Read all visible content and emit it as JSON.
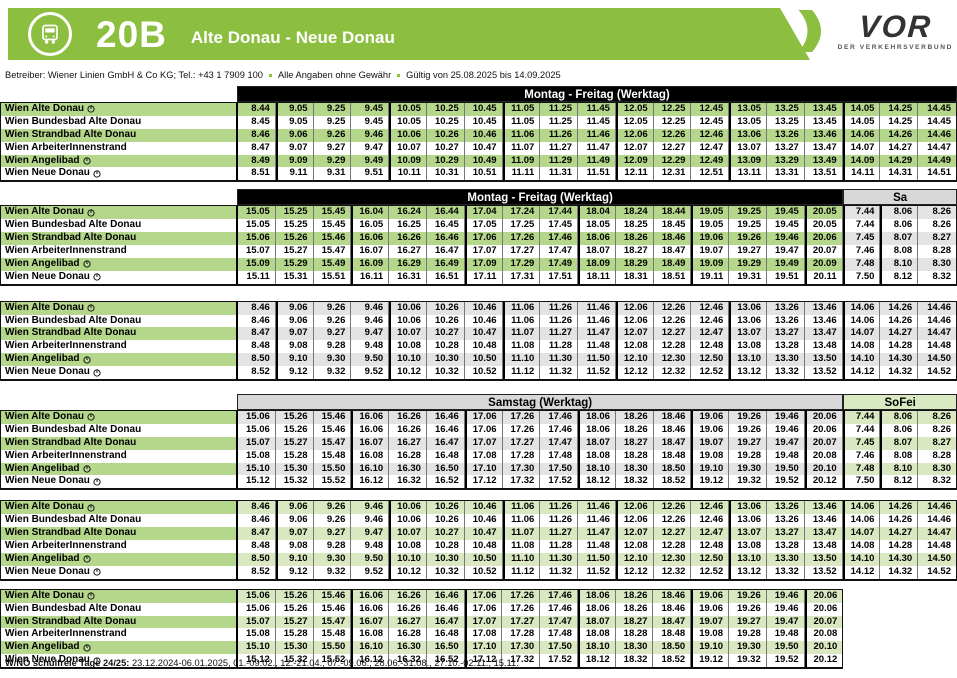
{
  "header": {
    "line_number": "20B",
    "route": "Alte Donau - Neue Donau",
    "brand": {
      "name": "VOR",
      "tagline": "DER VERKEHRSVERBUND"
    }
  },
  "info_line": {
    "operator": "Betreiber: Wiener Linien GmbH & Co KG; Tel.: +43 1 7909 100",
    "disclaimer": "Alle Angaben ohne Gewähr",
    "validity": "Gültig von 25.08.2025 bis 14.09.2025"
  },
  "icons": {
    "bus": "bus-icon",
    "brand_chevron": "vor-chevron-icon",
    "stop_symbol": "circled-clock"
  },
  "colors": {
    "brand_green": "#8cbe3f",
    "header_black": "#000000",
    "header_gray": "#d8d8d8",
    "header_green_light": "#d9e9c2",
    "stripe_green": "#b5d78b",
    "stripe_gray": "#e3e3e3",
    "stripe_green_light": "#d9e8c0",
    "border_dark": "#111111"
  },
  "stops": [
    {
      "name": "Wien Alte Donau",
      "symbol": true
    },
    {
      "name": "Wien Bundesbad Alte Donau",
      "symbol": false
    },
    {
      "name": "Wien Strandbad Alte Donau",
      "symbol": false
    },
    {
      "name": "Wien ArbeiterInnenstrand",
      "symbol": false
    },
    {
      "name": "Wien Angelibad",
      "symbol": true
    },
    {
      "name": "Wien Neue Donau",
      "symbol": true
    }
  ],
  "sections": [
    {
      "id": "A",
      "cols": 19,
      "stripe": "green",
      "header": {
        "main": "Montag - Freitag (Werktag)",
        "main_span": 19,
        "main_style": "black"
      },
      "rows": [
        [
          "8.44",
          "9.05",
          "9.25",
          "9.45",
          "10.05",
          "10.25",
          "10.45",
          "11.05",
          "11.25",
          "11.45",
          "12.05",
          "12.25",
          "12.45",
          "13.05",
          "13.25",
          "13.45",
          "14.05",
          "14.25",
          "14.45"
        ],
        [
          "8.45",
          "9.05",
          "9.25",
          "9.45",
          "10.05",
          "10.25",
          "10.45",
          "11.05",
          "11.25",
          "11.45",
          "12.05",
          "12.25",
          "12.45",
          "13.05",
          "13.25",
          "13.45",
          "14.05",
          "14.25",
          "14.45"
        ],
        [
          "8.46",
          "9.06",
          "9.26",
          "9.46",
          "10.06",
          "10.26",
          "10.46",
          "11.06",
          "11.26",
          "11.46",
          "12.06",
          "12.26",
          "12.46",
          "13.06",
          "13.26",
          "13.46",
          "14.06",
          "14.26",
          "14.46"
        ],
        [
          "8.47",
          "9.07",
          "9.27",
          "9.47",
          "10.07",
          "10.27",
          "10.47",
          "11.07",
          "11.27",
          "11.47",
          "12.07",
          "12.27",
          "12.47",
          "13.07",
          "13.27",
          "13.47",
          "14.07",
          "14.27",
          "14.47"
        ],
        [
          "8.49",
          "9.09",
          "9.29",
          "9.49",
          "10.09",
          "10.29",
          "10.49",
          "11.09",
          "11.29",
          "11.49",
          "12.09",
          "12.29",
          "12.49",
          "13.09",
          "13.29",
          "13.49",
          "14.09",
          "14.29",
          "14.49"
        ],
        [
          "8.51",
          "9.11",
          "9.31",
          "9.51",
          "10.11",
          "10.31",
          "10.51",
          "11.11",
          "11.31",
          "11.51",
          "12.11",
          "12.31",
          "12.51",
          "13.11",
          "13.31",
          "13.51",
          "14.11",
          "14.31",
          "14.51"
        ]
      ]
    },
    {
      "id": "B",
      "cols": 19,
      "stripe": "green",
      "extra_start": 16,
      "extra_stripe": "gray",
      "header": {
        "main": "Montag - Freitag (Werktag)",
        "main_span": 16,
        "main_style": "black",
        "sub": "Sa",
        "sub_span": 3,
        "sub_style": "gray"
      },
      "rows": [
        [
          "15.05",
          "15.25",
          "15.45",
          "16.04",
          "16.24",
          "16.44",
          "17.04",
          "17.24",
          "17.44",
          "18.04",
          "18.24",
          "18.44",
          "19.05",
          "19.25",
          "19.45",
          "20.05",
          "7.44",
          "8.06",
          "8.26"
        ],
        [
          "15.05",
          "15.25",
          "15.45",
          "16.05",
          "16.25",
          "16.45",
          "17.05",
          "17.25",
          "17.45",
          "18.05",
          "18.25",
          "18.45",
          "19.05",
          "19.25",
          "19.45",
          "20.05",
          "7.44",
          "8.06",
          "8.26"
        ],
        [
          "15.06",
          "15.26",
          "15.46",
          "16.06",
          "16.26",
          "16.46",
          "17.06",
          "17.26",
          "17.46",
          "18.06",
          "18.26",
          "18.46",
          "19.06",
          "19.26",
          "19.46",
          "20.06",
          "7.45",
          "8.07",
          "8.27"
        ],
        [
          "15.07",
          "15.27",
          "15.47",
          "16.07",
          "16.27",
          "16.47",
          "17.07",
          "17.27",
          "17.47",
          "18.07",
          "18.27",
          "18.47",
          "19.07",
          "19.27",
          "19.47",
          "20.07",
          "7.46",
          "8.08",
          "8.28"
        ],
        [
          "15.09",
          "15.29",
          "15.49",
          "16.09",
          "16.29",
          "16.49",
          "17.09",
          "17.29",
          "17.49",
          "18.09",
          "18.29",
          "18.49",
          "19.09",
          "19.29",
          "19.49",
          "20.09",
          "7.48",
          "8.10",
          "8.30"
        ],
        [
          "15.11",
          "15.31",
          "15.51",
          "16.11",
          "16.31",
          "16.51",
          "17.11",
          "17.31",
          "17.51",
          "18.11",
          "18.31",
          "18.51",
          "19.11",
          "19.31",
          "19.51",
          "20.11",
          "7.50",
          "8.12",
          "8.32"
        ]
      ]
    },
    {
      "id": "C",
      "cols": 19,
      "stripe": "gray",
      "rows": [
        [
          "8.46",
          "9.06",
          "9.26",
          "9.46",
          "10.06",
          "10.26",
          "10.46",
          "11.06",
          "11.26",
          "11.46",
          "12.06",
          "12.26",
          "12.46",
          "13.06",
          "13.26",
          "13.46",
          "14.06",
          "14.26",
          "14.46"
        ],
        [
          "8.46",
          "9.06",
          "9.26",
          "9.46",
          "10.06",
          "10.26",
          "10.46",
          "11.06",
          "11.26",
          "11.46",
          "12.06",
          "12.26",
          "12.46",
          "13.06",
          "13.26",
          "13.46",
          "14.06",
          "14.26",
          "14.46"
        ],
        [
          "8.47",
          "9.07",
          "9.27",
          "9.47",
          "10.07",
          "10.27",
          "10.47",
          "11.07",
          "11.27",
          "11.47",
          "12.07",
          "12.27",
          "12.47",
          "13.07",
          "13.27",
          "13.47",
          "14.07",
          "14.27",
          "14.47"
        ],
        [
          "8.48",
          "9.08",
          "9.28",
          "9.48",
          "10.08",
          "10.28",
          "10.48",
          "11.08",
          "11.28",
          "11.48",
          "12.08",
          "12.28",
          "12.48",
          "13.08",
          "13.28",
          "13.48",
          "14.08",
          "14.28",
          "14.48"
        ],
        [
          "8.50",
          "9.10",
          "9.30",
          "9.50",
          "10.10",
          "10.30",
          "10.50",
          "11.10",
          "11.30",
          "11.50",
          "12.10",
          "12.30",
          "12.50",
          "13.10",
          "13.30",
          "13.50",
          "14.10",
          "14.30",
          "14.50"
        ],
        [
          "8.52",
          "9.12",
          "9.32",
          "9.52",
          "10.12",
          "10.32",
          "10.52",
          "11.12",
          "11.32",
          "11.52",
          "12.12",
          "12.32",
          "12.52",
          "13.12",
          "13.32",
          "13.52",
          "14.12",
          "14.32",
          "14.52"
        ]
      ]
    },
    {
      "id": "D",
      "cols": 19,
      "stripe": "gray",
      "extra_start": 16,
      "extra_stripe": "green_light",
      "header": {
        "main": "Samstag (Werktag)",
        "main_span": 16,
        "main_style": "gray",
        "sub": "SoFei",
        "sub_span": 3,
        "sub_style": "green_light"
      },
      "rows": [
        [
          "15.06",
          "15.26",
          "15.46",
          "16.06",
          "16.26",
          "16.46",
          "17.06",
          "17.26",
          "17.46",
          "18.06",
          "18.26",
          "18.46",
          "19.06",
          "19.26",
          "19.46",
          "20.06",
          "7.44",
          "8.06",
          "8.26"
        ],
        [
          "15.06",
          "15.26",
          "15.46",
          "16.06",
          "16.26",
          "16.46",
          "17.06",
          "17.26",
          "17.46",
          "18.06",
          "18.26",
          "18.46",
          "19.06",
          "19.26",
          "19.46",
          "20.06",
          "7.44",
          "8.06",
          "8.26"
        ],
        [
          "15.07",
          "15.27",
          "15.47",
          "16.07",
          "16.27",
          "16.47",
          "17.07",
          "17.27",
          "17.47",
          "18.07",
          "18.27",
          "18.47",
          "19.07",
          "19.27",
          "19.47",
          "20.07",
          "7.45",
          "8.07",
          "8.27"
        ],
        [
          "15.08",
          "15.28",
          "15.48",
          "16.08",
          "16.28",
          "16.48",
          "17.08",
          "17.28",
          "17.48",
          "18.08",
          "18.28",
          "18.48",
          "19.08",
          "19.28",
          "19.48",
          "20.08",
          "7.46",
          "8.08",
          "8.28"
        ],
        [
          "15.10",
          "15.30",
          "15.50",
          "16.10",
          "16.30",
          "16.50",
          "17.10",
          "17.30",
          "17.50",
          "18.10",
          "18.30",
          "18.50",
          "19.10",
          "19.30",
          "19.50",
          "20.10",
          "7.48",
          "8.10",
          "8.30"
        ],
        [
          "15.12",
          "15.32",
          "15.52",
          "16.12",
          "16.32",
          "16.52",
          "17.12",
          "17.32",
          "17.52",
          "18.12",
          "18.32",
          "18.52",
          "19.12",
          "19.32",
          "19.52",
          "20.12",
          "7.50",
          "8.12",
          "8.32"
        ]
      ]
    },
    {
      "id": "E",
      "cols": 19,
      "stripe": "green_light",
      "rows": [
        [
          "8.46",
          "9.06",
          "9.26",
          "9.46",
          "10.06",
          "10.26",
          "10.46",
          "11.06",
          "11.26",
          "11.46",
          "12.06",
          "12.26",
          "12.46",
          "13.06",
          "13.26",
          "13.46",
          "14.06",
          "14.26",
          "14.46"
        ],
        [
          "8.46",
          "9.06",
          "9.26",
          "9.46",
          "10.06",
          "10.26",
          "10.46",
          "11.06",
          "11.26",
          "11.46",
          "12.06",
          "12.26",
          "12.46",
          "13.06",
          "13.26",
          "13.46",
          "14.06",
          "14.26",
          "14.46"
        ],
        [
          "8.47",
          "9.07",
          "9.27",
          "9.47",
          "10.07",
          "10.27",
          "10.47",
          "11.07",
          "11.27",
          "11.47",
          "12.07",
          "12.27",
          "12.47",
          "13.07",
          "13.27",
          "13.47",
          "14.07",
          "14.27",
          "14.47"
        ],
        [
          "8.48",
          "9.08",
          "9.28",
          "9.48",
          "10.08",
          "10.28",
          "10.48",
          "11.08",
          "11.28",
          "11.48",
          "12.08",
          "12.28",
          "12.48",
          "13.08",
          "13.28",
          "13.48",
          "14.08",
          "14.28",
          "14.48"
        ],
        [
          "8.50",
          "9.10",
          "9.30",
          "9.50",
          "10.10",
          "10.30",
          "10.50",
          "11.10",
          "11.30",
          "11.50",
          "12.10",
          "12.30",
          "12.50",
          "13.10",
          "13.30",
          "13.50",
          "14.10",
          "14.30",
          "14.50"
        ],
        [
          "8.52",
          "9.12",
          "9.32",
          "9.52",
          "10.12",
          "10.32",
          "10.52",
          "11.12",
          "11.32",
          "11.52",
          "12.12",
          "12.32",
          "12.52",
          "13.12",
          "13.32",
          "13.52",
          "14.12",
          "14.32",
          "14.52"
        ]
      ]
    },
    {
      "id": "F",
      "cols": 16,
      "stripe": "green_light",
      "rows": [
        [
          "15.06",
          "15.26",
          "15.46",
          "16.06",
          "16.26",
          "16.46",
          "17.06",
          "17.26",
          "17.46",
          "18.06",
          "18.26",
          "18.46",
          "19.06",
          "19.26",
          "19.46",
          "20.06"
        ],
        [
          "15.06",
          "15.26",
          "15.46",
          "16.06",
          "16.26",
          "16.46",
          "17.06",
          "17.26",
          "17.46",
          "18.06",
          "18.26",
          "18.46",
          "19.06",
          "19.26",
          "19.46",
          "20.06"
        ],
        [
          "15.07",
          "15.27",
          "15.47",
          "16.07",
          "16.27",
          "16.47",
          "17.07",
          "17.27",
          "17.47",
          "18.07",
          "18.27",
          "18.47",
          "19.07",
          "19.27",
          "19.47",
          "20.07"
        ],
        [
          "15.08",
          "15.28",
          "15.48",
          "16.08",
          "16.28",
          "16.48",
          "17.08",
          "17.28",
          "17.48",
          "18.08",
          "18.28",
          "18.48",
          "19.08",
          "19.28",
          "19.48",
          "20.08"
        ],
        [
          "15.10",
          "15.30",
          "15.50",
          "16.10",
          "16.30",
          "16.50",
          "17.10",
          "17.30",
          "17.50",
          "18.10",
          "18.30",
          "18.50",
          "19.10",
          "19.30",
          "19.50",
          "20.10"
        ],
        [
          "15.12",
          "15.32",
          "15.52",
          "16.12",
          "16.32",
          "16.52",
          "17.12",
          "17.32",
          "17.52",
          "18.12",
          "18.32",
          "18.52",
          "19.12",
          "19.32",
          "19.52",
          "20.12"
        ]
      ]
    }
  ],
  "footer": {
    "bold": "W/NÖ schulfreie Tage 24/25:",
    "text": "23.12.2024-06.01.2025, 01.-09.02., 12.-21.04., 07.-09.06., 28.06.-31.08., 27.10.-02.11., 15.11."
  }
}
